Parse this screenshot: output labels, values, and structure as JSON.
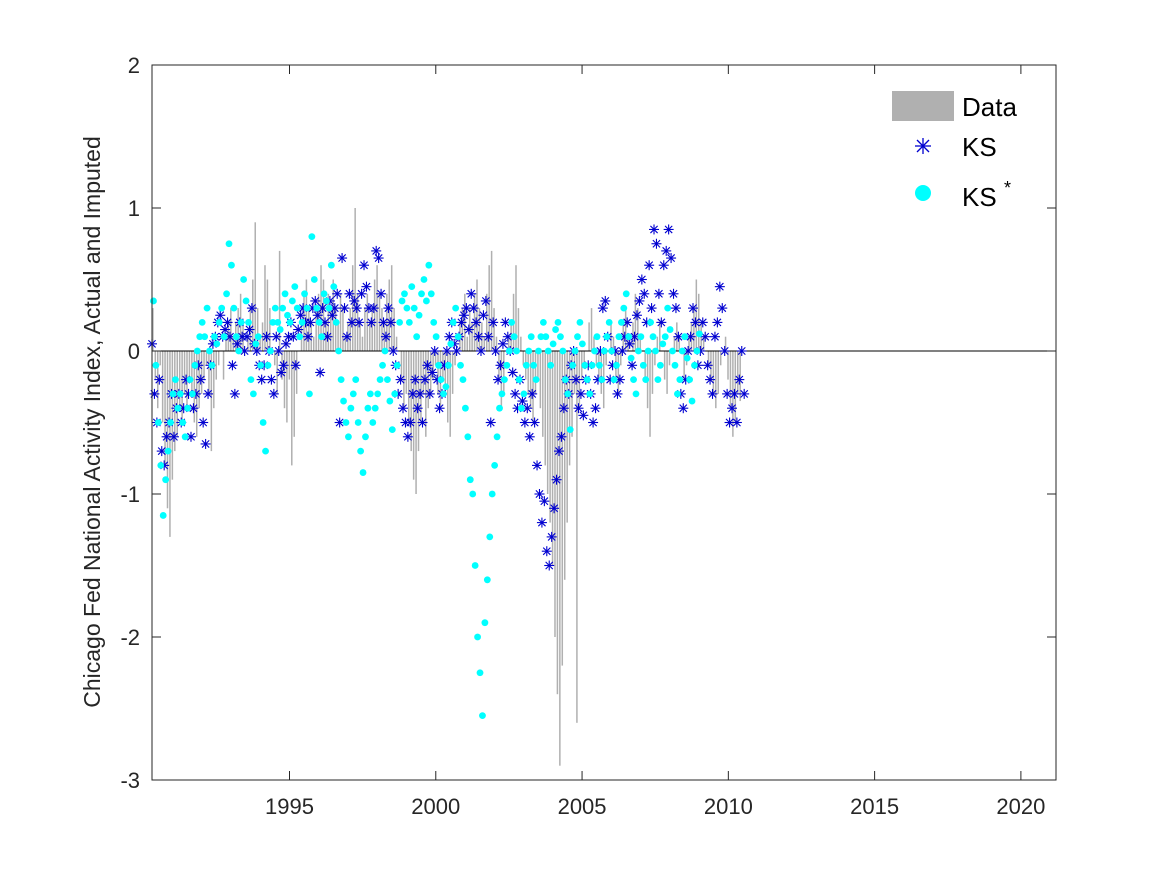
{
  "chart_data": {
    "type": "scatter",
    "title": "",
    "xlabel": "",
    "ylabel": "Chicago Fed National Activity Index, Actual and Imputed",
    "xlim": [
      1990.3,
      2021.2
    ],
    "ylim": [
      -3,
      2
    ],
    "xticks": [
      1995,
      2000,
      2005,
      2010,
      2015,
      2020
    ],
    "xtick_labels": [
      "1995",
      "2000",
      "2005",
      "2010",
      "2015",
      "2020"
    ],
    "yticks": [
      -3,
      -2,
      -1,
      0,
      1,
      2
    ],
    "ytick_labels": [
      "-3",
      "-2",
      "-1",
      "0",
      "1",
      "2"
    ],
    "grid": false,
    "legend_position": "top-right",
    "colors": {
      "data": "#b0b0b0",
      "ks": "#0000d0",
      "ks_star": "#00ffff",
      "axis": "#262626"
    },
    "legend": {
      "data_label": "Data",
      "ks_label": "KS",
      "ks_star_label": "KS",
      "ks_star_superscript": "*"
    },
    "series": [
      {
        "name": "Data",
        "style": "bar",
        "x_start": 1990.33,
        "x_step": 0.0833,
        "values": [
          0.3,
          -0.2,
          -0.4,
          -0.1,
          -0.5,
          -0.8,
          -1.1,
          -1.3,
          -0.9,
          -0.7,
          -0.6,
          -0.4,
          -0.5,
          -0.3,
          -0.4,
          -0.2,
          -0.3,
          -0.5,
          -0.6,
          -0.4,
          -0.3,
          -0.2,
          -0.1,
          -0.3,
          -0.7,
          -0.4,
          -0.2,
          -0.1,
          0.0,
          -0.2,
          0.1,
          0.2,
          0.3,
          0.1,
          0.2,
          0.3,
          0.4,
          0.2,
          0.0,
          0.1,
          0.3,
          0.5,
          0.9,
          0.3,
          0.1,
          0.2,
          0.6,
          0.5,
          0.3,
          0.0,
          -0.1,
          -0.3,
          0.7,
          -0.2,
          -0.4,
          -0.5,
          -0.2,
          -0.8,
          -0.6,
          -0.3,
          0.0,
          0.2,
          0.4,
          0.5,
          0.3,
          0.2,
          0.1,
          0.3,
          0.4,
          0.6,
          0.5,
          0.2,
          0.4,
          0.3,
          0.5,
          0.3,
          0.2,
          0.4,
          0.3,
          0.1,
          0.2,
          0.3,
          0.6,
          1.0,
          0.4,
          0.2,
          0.1,
          0.3,
          0.4,
          0.2,
          0.3,
          0.5,
          0.6,
          0.4,
          0.3,
          0.2,
          0.4,
          0.5,
          0.6,
          0.3,
          0.1,
          0.0,
          -0.2,
          -0.4,
          -0.3,
          -0.5,
          -0.7,
          -0.9,
          -1.0,
          -0.7,
          -0.5,
          -0.3,
          -0.6,
          -0.4,
          -0.3,
          -0.2,
          -0.1,
          -0.3,
          -0.4,
          -0.2,
          -0.3,
          -0.5,
          -0.6,
          -0.3,
          -0.1,
          0.0,
          0.2,
          0.3,
          0.4,
          0.1,
          0.3,
          0.2,
          0.4,
          0.5,
          0.3,
          0.2,
          0.1,
          0.4,
          0.6,
          0.7,
          0.3,
          0.1,
          -0.2,
          -0.4,
          -0.3,
          0.0,
          0.1,
          0.2,
          0.4,
          0.6,
          0.3,
          0.1,
          -0.1,
          -0.2,
          -0.3,
          -0.4,
          -0.5,
          -0.3,
          -0.2,
          -0.4,
          -0.6,
          -0.8,
          -1.0,
          -1.2,
          -1.5,
          -2.0,
          -2.4,
          -2.9,
          -2.2,
          -1.6,
          -1.2,
          -0.8,
          -0.6,
          -0.3,
          -2.6,
          -0.4,
          -0.2,
          -0.1,
          0.0,
          0.2,
          0.3,
          0.1,
          -0.1,
          -0.2,
          -0.3,
          -0.4,
          -0.1,
          0.0,
          0.2,
          0.1,
          -0.2,
          -0.3,
          -0.1,
          0.2,
          0.3,
          0.1,
          0.0,
          0.2,
          0.4,
          0.3,
          0.1,
          0.0,
          -0.2,
          -0.4,
          -0.6,
          -0.3,
          -0.1,
          0.1,
          0.2,
          0.0,
          -0.2,
          -0.3,
          -0.1,
          0.0,
          0.1,
          0.2,
          0.1,
          0.0,
          -0.2,
          -0.1,
          0.1,
          0.2,
          0.3,
          0.5,
          0.4,
          0.2,
          0.1,
          0.0,
          -0.1,
          -0.2,
          -0.3,
          -0.4,
          -0.3,
          -0.1,
          0.0,
          0.1,
          -0.2,
          -0.4,
          -0.6,
          -0.5,
          -0.3,
          -0.35
        ]
      },
      {
        "name": "KS",
        "style": "asterisk",
        "x_start": 1990.3,
        "x_step": 0.0833,
        "values": [
          0.05,
          -0.3,
          -0.5,
          -0.2,
          -0.7,
          -0.8,
          -0.6,
          -0.5,
          -0.3,
          -0.6,
          -0.4,
          -0.3,
          -0.5,
          -0.4,
          -0.2,
          -0.3,
          -0.6,
          -0.4,
          -0.3,
          -0.1,
          -0.2,
          -0.5,
          -0.65,
          -0.3,
          -0.1,
          0.05,
          0.1,
          0.2,
          0.25,
          0.1,
          0.15,
          0.2,
          0.1,
          -0.1,
          -0.3,
          0.05,
          0.2,
          0.1,
          0.0,
          0.1,
          0.15,
          0.3,
          0.05,
          0.0,
          -0.1,
          -0.2,
          -0.1,
          0.1,
          0.0,
          -0.2,
          -0.3,
          0.1,
          0.0,
          -0.15,
          -0.1,
          0.05,
          0.1,
          0.2,
          0.1,
          -0.1,
          0.15,
          0.25,
          0.3,
          0.2,
          0.1,
          0.2,
          0.3,
          0.35,
          0.25,
          -0.15,
          0.3,
          0.2,
          0.1,
          0.35,
          0.25,
          0.3,
          0.4,
          -0.5,
          0.65,
          0.3,
          0.1,
          0.4,
          0.2,
          0.35,
          0.3,
          0.2,
          0.4,
          0.6,
          0.45,
          0.3,
          0.2,
          0.3,
          0.7,
          0.65,
          0.4,
          0.2,
          0.1,
          0.3,
          0.2,
          0.0,
          -0.1,
          -0.3,
          -0.2,
          -0.4,
          -0.5,
          -0.6,
          -0.5,
          -0.3,
          -0.2,
          -0.4,
          -0.3,
          -0.5,
          -0.2,
          -0.1,
          -0.3,
          -0.15,
          0.0,
          -0.2,
          -0.4,
          -0.3,
          -0.1,
          0.0,
          0.1,
          0.2,
          0.05,
          0.0,
          0.1,
          0.2,
          0.25,
          0.3,
          0.15,
          0.4,
          0.3,
          0.2,
          0.1,
          0.0,
          0.25,
          0.35,
          0.1,
          -0.5,
          0.2,
          0.0,
          -0.2,
          -0.1,
          0.05,
          0.2,
          0.1,
          0.0,
          -0.15,
          -0.3,
          -0.4,
          -0.2,
          -0.35,
          -0.5,
          -0.4,
          -0.6,
          -0.3,
          -0.5,
          -0.8,
          -1.0,
          -1.2,
          -1.05,
          -1.4,
          -1.5,
          -1.3,
          -1.1,
          -0.9,
          -0.7,
          -0.6,
          -0.4,
          -0.2,
          -0.3,
          -0.1,
          0.0,
          -0.2,
          -0.4,
          -0.3,
          -0.45,
          -0.2,
          -0.1,
          -0.3,
          -0.5,
          -0.4,
          -0.2,
          0.0,
          0.3,
          0.35,
          0.1,
          -0.2,
          -0.1,
          0.0,
          -0.3,
          -0.2,
          0.0,
          0.1,
          0.2,
          0.05,
          -0.1,
          0.1,
          0.25,
          0.35,
          0.5,
          0.4,
          0.2,
          0.6,
          0.3,
          0.85,
          0.75,
          0.4,
          0.2,
          0.6,
          0.7,
          0.85,
          0.65,
          0.4,
          0.3,
          0.1,
          -0.3,
          -0.4,
          -0.2,
          0.0,
          0.1,
          0.3,
          0.2,
          -0.1,
          0.0,
          0.2,
          0.1,
          -0.1,
          -0.2,
          -0.3,
          0.1,
          0.2,
          0.45,
          0.3,
          0.0,
          -0.3,
          -0.5,
          -0.4,
          -0.3,
          -0.5,
          -0.2,
          0.0,
          -0.3
        ]
      },
      {
        "name": "KS*",
        "style": "dot",
        "x_start": 1990.35,
        "x_step": 0.0833,
        "values": [
          0.35,
          -0.1,
          -0.5,
          -0.8,
          -1.15,
          -0.9,
          -0.7,
          -0.5,
          -0.3,
          -0.2,
          -0.4,
          -0.3,
          -0.5,
          -0.6,
          -0.4,
          -0.2,
          -0.3,
          -0.1,
          0.0,
          0.1,
          0.2,
          0.1,
          0.3,
          0.0,
          -0.1,
          0.1,
          0.05,
          0.2,
          0.3,
          0.1,
          0.4,
          0.75,
          0.6,
          0.3,
          0.1,
          0.0,
          0.2,
          0.5,
          0.35,
          0.2,
          -0.2,
          -0.3,
          0.05,
          0.1,
          -0.1,
          -0.5,
          -0.7,
          -0.1,
          0.0,
          0.2,
          0.3,
          0.2,
          0.15,
          0.3,
          0.4,
          0.25,
          0.2,
          0.35,
          0.45,
          0.3,
          0.1,
          0.2,
          0.4,
          0.3,
          -0.3,
          0.8,
          0.5,
          0.3,
          0.2,
          0.1,
          0.4,
          0.35,
          0.3,
          0.6,
          0.45,
          0.2,
          0.0,
          -0.2,
          -0.35,
          -0.5,
          -0.6,
          -0.4,
          -0.3,
          -0.2,
          -0.5,
          -0.7,
          -0.85,
          -0.6,
          -0.4,
          -0.3,
          -0.5,
          -0.4,
          -0.3,
          -0.2,
          -0.1,
          0.0,
          -0.2,
          -0.35,
          -0.55,
          -0.3,
          -0.1,
          0.2,
          0.35,
          0.4,
          0.3,
          0.2,
          0.45,
          0.3,
          0.1,
          0.25,
          0.4,
          0.5,
          0.35,
          0.6,
          0.4,
          0.2,
          0.1,
          -0.1,
          -0.2,
          -0.3,
          -0.25,
          -0.1,
          0.05,
          0.2,
          0.3,
          0.1,
          -0.1,
          -0.2,
          -0.4,
          -0.6,
          -0.9,
          -1.0,
          -1.5,
          -2.0,
          -2.25,
          -2.55,
          -1.9,
          -1.6,
          -1.3,
          -1.0,
          -0.8,
          -0.6,
          -0.4,
          -0.3,
          -0.2,
          -0.1,
          0.0,
          0.2,
          0.1,
          0.0,
          -0.2,
          -0.4,
          -0.3,
          -0.1,
          0.0,
          0.1,
          -0.1,
          -0.2,
          0.0,
          0.1,
          0.2,
          0.1,
          0.0,
          -0.1,
          0.05,
          0.15,
          0.2,
          0.1,
          0.0,
          -0.2,
          -0.3,
          -0.55,
          -0.1,
          0.0,
          0.1,
          0.2,
          0.05,
          -0.1,
          -0.2,
          -0.3,
          -0.1,
          0.0,
          0.1,
          -0.1,
          -0.2,
          0.0,
          0.1,
          0.2,
          0.0,
          -0.2,
          -0.1,
          0.1,
          0.2,
          0.3,
          0.4,
          0.1,
          -0.05,
          -0.2,
          -0.3,
          0.0,
          0.1,
          -0.1,
          -0.2,
          0.0,
          0.2,
          0.1,
          0.0,
          -0.2,
          -0.1,
          0.05,
          0.1,
          0.3,
          0.15,
          0.0,
          -0.1,
          -0.3,
          -0.2,
          0.0,
          0.1,
          -0.05,
          -0.2,
          -0.35,
          -0.1,
          0.0,
          0.12
        ]
      }
    ]
  }
}
